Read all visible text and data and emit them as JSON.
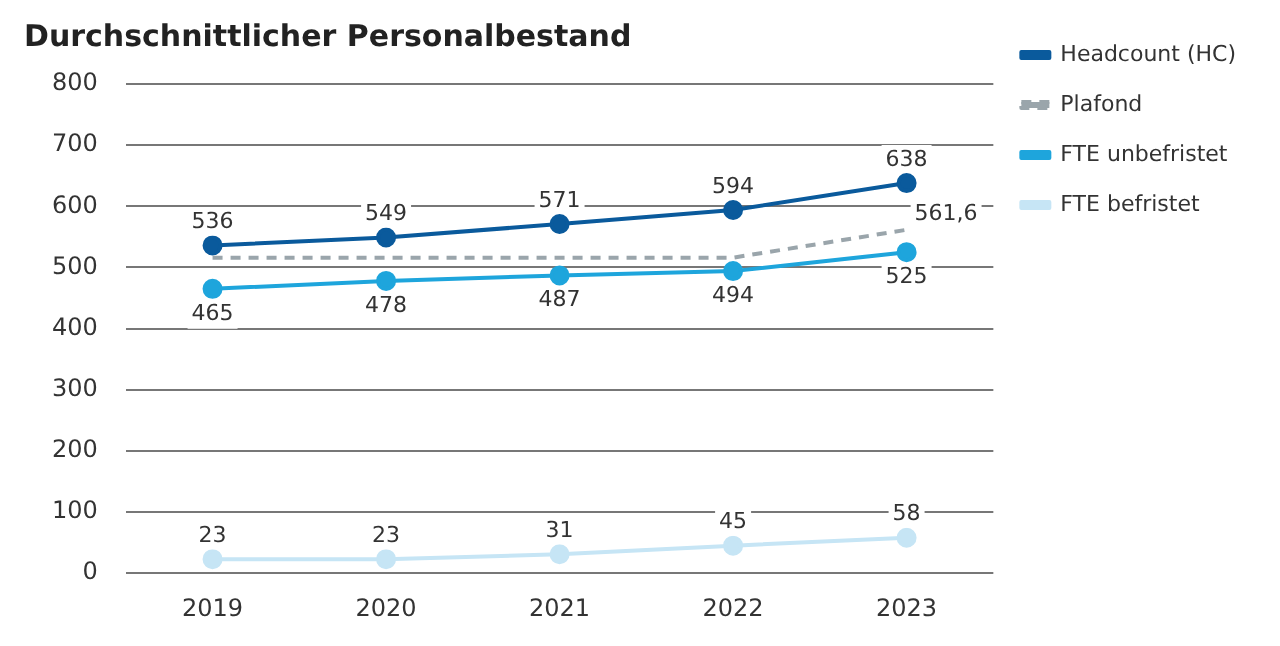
{
  "chart_data": {
    "type": "line",
    "title": "Durchschnittlicher Personalbestand",
    "categories": [
      "2019",
      "2020",
      "2021",
      "2022",
      "2023"
    ],
    "series": [
      {
        "name": "Headcount (HC)",
        "color": "#0a5a9c",
        "values": [
          536,
          549,
          571,
          594,
          638
        ],
        "marker": "circle",
        "line_style": "solid",
        "value_labels": [
          "536",
          "549",
          "571",
          "594",
          "638"
        ]
      },
      {
        "name": "Plafond",
        "color": "#9aa5ab",
        "values": [
          516,
          516,
          516,
          516,
          561.6
        ],
        "marker": "none",
        "line_style": "dashed",
        "value_labels": [
          null,
          null,
          null,
          null,
          "561,6"
        ]
      },
      {
        "name": "FTE unbefristet",
        "color": "#1ea5dc",
        "values": [
          465,
          478,
          487,
          494,
          525
        ],
        "marker": "circle",
        "line_style": "solid",
        "value_labels": [
          "465",
          "478",
          "487",
          "494",
          "525"
        ]
      },
      {
        "name": "FTE befristet",
        "color": "#c6e5f5",
        "values": [
          23,
          23,
          31,
          45,
          58
        ],
        "marker": "circle",
        "line_style": "solid",
        "value_labels": [
          "23",
          "23",
          "31",
          "45",
          "58"
        ]
      }
    ],
    "ylim": [
      0,
      800
    ],
    "yticks": [
      0,
      100,
      200,
      300,
      400,
      500,
      600,
      700,
      800
    ],
    "grid": "y",
    "legend": "right"
  }
}
